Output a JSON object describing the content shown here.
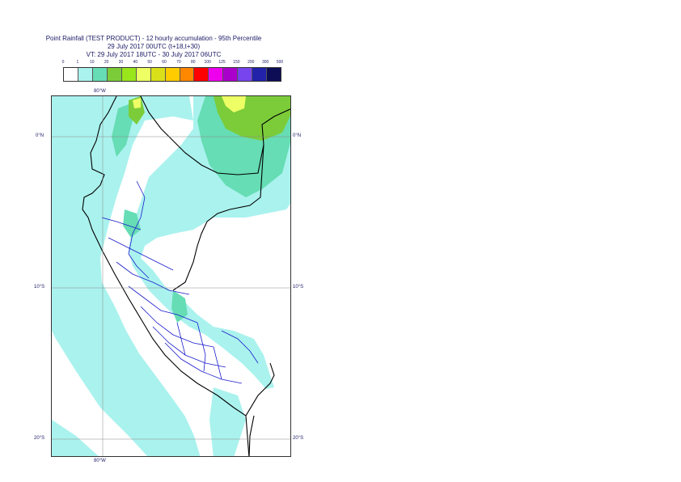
{
  "title": {
    "line1": "Point Rainfall (TEST PRODUCT) - 12 hourly accumulation - 95th Percentile",
    "line2": "29 July 2017 00UTC (t+18,t+30)",
    "line3": "VT: 29 July 2017 18UTC - 30 July 2017 06UTC"
  },
  "legend": {
    "labels": [
      "0",
      "1",
      "10",
      "20",
      "30",
      "40",
      "50",
      "60",
      "70",
      "80",
      "100",
      "125",
      "150",
      "200",
      "300",
      "500"
    ],
    "colors": [
      "#ffffff",
      "#aaf2ee",
      "#66ddb4",
      "#7ccc3a",
      "#99e61a",
      "#eeff66",
      "#d9e01a",
      "#ffcc00",
      "#ff8800",
      "#ff0000",
      "#ee00ee",
      "#aa00cc",
      "#7744ee",
      "#2222aa",
      "#0d0d55"
    ]
  },
  "axes": {
    "lon_top": "80°W",
    "lon_bottom": "80°W",
    "lat_0": "0°N",
    "lat_10": "10°S",
    "lat_20": "20°S"
  }
}
